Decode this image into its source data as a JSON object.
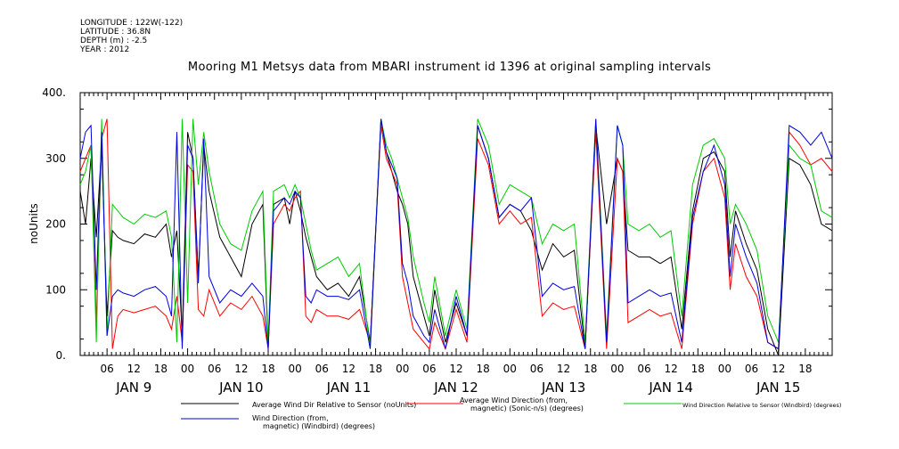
{
  "header": {
    "longitude": "LONGITUDE : 122W(-122)",
    "latitude": "LATITUDE : 36.8N",
    "depth": "DEPTH (m) : -2.5",
    "year": "YEAR : 2012"
  },
  "chart_data": {
    "type": "line",
    "title": "Mooring M1 Metsys data from MBARI instrument id 1396 at original sampling intervals",
    "ylabel": "noUnits",
    "ylim": [
      0,
      400
    ],
    "yticks": [
      0,
      100,
      200,
      300,
      400
    ],
    "ytick_labels": [
      "0.",
      "100",
      "200",
      "300",
      "400."
    ],
    "xlim": [
      0,
      7
    ],
    "x_unit": "days since JAN 9 2012 00:00",
    "hour_ticks": [
      "06",
      "12",
      "18",
      "00"
    ],
    "day_labels": [
      "JAN  9",
      "JAN 10",
      "JAN 11",
      "JAN 12",
      "JAN 13",
      "JAN 14",
      "JAN 15"
    ],
    "grid": false,
    "legend_position": "bottom",
    "series": [
      {
        "name": "Average Wind Dir Relative to Sensor (noUnits)",
        "color": "#000000",
        "x": [
          0.0,
          0.05,
          0.1,
          0.15,
          0.2,
          0.25,
          0.3,
          0.35,
          0.4,
          0.5,
          0.6,
          0.7,
          0.8,
          0.85,
          0.9,
          0.95,
          1.0,
          1.05,
          1.1,
          1.15,
          1.2,
          1.3,
          1.4,
          1.5,
          1.6,
          1.7,
          1.75,
          1.8,
          1.9,
          1.95,
          2.0,
          2.05,
          2.1,
          2.15,
          2.2,
          2.3,
          2.4,
          2.5,
          2.6,
          2.7,
          2.8,
          2.85,
          2.9,
          2.95,
          3.0,
          3.05,
          3.1,
          3.2,
          3.25,
          3.3,
          3.4,
          3.5,
          3.6,
          3.7,
          3.8,
          3.9,
          4.0,
          4.1,
          4.2,
          4.3,
          4.4,
          4.5,
          4.6,
          4.7,
          4.8,
          4.9,
          5.0,
          5.05,
          5.1,
          5.2,
          5.3,
          5.4,
          5.5,
          5.6,
          5.7,
          5.8,
          5.9,
          6.0,
          6.05,
          6.1,
          6.2,
          6.3,
          6.4,
          6.5,
          6.6,
          6.7,
          6.8,
          6.9,
          7.0
        ],
        "values": [
          250,
          200,
          300,
          180,
          320,
          60,
          190,
          180,
          175,
          170,
          185,
          180,
          200,
          150,
          190,
          30,
          340,
          300,
          120,
          320,
          250,
          180,
          150,
          120,
          200,
          230,
          10,
          230,
          240,
          200,
          250,
          220,
          180,
          150,
          120,
          100,
          110,
          90,
          120,
          20,
          360,
          310,
          280,
          250,
          230,
          200,
          120,
          60,
          30,
          100,
          20,
          80,
          30,
          350,
          300,
          210,
          230,
          220,
          190,
          130,
          170,
          150,
          160,
          10,
          350,
          200,
          300,
          280,
          160,
          150,
          150,
          140,
          150,
          40,
          220,
          300,
          310,
          280,
          150,
          220,
          170,
          130,
          40,
          0,
          300,
          290,
          260,
          200,
          190
        ]
      },
      {
        "name": "Average Wind Direction (from, magnetic) (Sonic-n/s) (degrees)",
        "color": "#ff0000",
        "x": [
          0.0,
          0.05,
          0.1,
          0.15,
          0.2,
          0.25,
          0.3,
          0.35,
          0.4,
          0.5,
          0.6,
          0.7,
          0.8,
          0.85,
          0.9,
          0.95,
          1.0,
          1.05,
          1.1,
          1.15,
          1.2,
          1.3,
          1.4,
          1.5,
          1.6,
          1.7,
          1.75,
          1.8,
          1.9,
          1.95,
          2.0,
          2.05,
          2.1,
          2.15,
          2.2,
          2.3,
          2.4,
          2.5,
          2.6,
          2.7,
          2.8,
          2.85,
          2.9,
          2.95,
          3.0,
          3.05,
          3.1,
          3.2,
          3.25,
          3.3,
          3.4,
          3.5,
          3.6,
          3.7,
          3.8,
          3.9,
          4.0,
          4.1,
          4.2,
          4.3,
          4.4,
          4.5,
          4.6,
          4.7,
          4.8,
          4.9,
          5.0,
          5.05,
          5.1,
          5.2,
          5.3,
          5.4,
          5.5,
          5.6,
          5.7,
          5.8,
          5.9,
          6.0,
          6.05,
          6.1,
          6.2,
          6.3,
          6.4,
          6.5,
          6.6,
          6.7,
          6.8,
          6.9,
          7.0
        ],
        "values": [
          280,
          300,
          320,
          50,
          330,
          360,
          10,
          60,
          70,
          65,
          70,
          75,
          60,
          40,
          90,
          20,
          290,
          280,
          70,
          60,
          100,
          60,
          80,
          70,
          90,
          60,
          10,
          200,
          230,
          220,
          240,
          250,
          60,
          50,
          70,
          60,
          60,
          55,
          70,
          20,
          350,
          300,
          280,
          260,
          120,
          80,
          40,
          20,
          10,
          50,
          10,
          70,
          20,
          330,
          290,
          200,
          220,
          200,
          210,
          60,
          80,
          70,
          75,
          10,
          340,
          10,
          300,
          280,
          50,
          60,
          70,
          60,
          65,
          10,
          200,
          280,
          300,
          240,
          100,
          170,
          120,
          90,
          20,
          10,
          340,
          320,
          290,
          300,
          280
        ]
      },
      {
        "name": "Wind Direction Relative to Sensor (Windbird) (degrees)",
        "color": "#00cc00",
        "x": [
          0.0,
          0.05,
          0.1,
          0.15,
          0.2,
          0.25,
          0.3,
          0.35,
          0.4,
          0.5,
          0.6,
          0.7,
          0.8,
          0.85,
          0.9,
          0.95,
          1.0,
          1.05,
          1.1,
          1.15,
          1.2,
          1.3,
          1.4,
          1.5,
          1.6,
          1.7,
          1.75,
          1.8,
          1.9,
          1.95,
          2.0,
          2.05,
          2.1,
          2.15,
          2.2,
          2.3,
          2.4,
          2.5,
          2.6,
          2.7,
          2.8,
          2.85,
          2.9,
          2.95,
          3.0,
          3.05,
          3.1,
          3.2,
          3.25,
          3.3,
          3.4,
          3.5,
          3.6,
          3.7,
          3.8,
          3.9,
          4.0,
          4.1,
          4.2,
          4.3,
          4.4,
          4.5,
          4.6,
          4.7,
          4.8,
          4.9,
          5.0,
          5.05,
          5.1,
          5.2,
          5.3,
          5.4,
          5.5,
          5.6,
          5.7,
          5.8,
          5.9,
          6.0,
          6.05,
          6.1,
          6.2,
          6.3,
          6.4,
          6.5,
          6.6,
          6.7,
          6.8,
          6.9,
          7.0
        ],
        "values": [
          260,
          280,
          320,
          20,
          360,
          30,
          230,
          220,
          210,
          200,
          215,
          210,
          220,
          180,
          20,
          360,
          80,
          360,
          260,
          340,
          280,
          200,
          170,
          160,
          220,
          250,
          20,
          250,
          260,
          240,
          260,
          240,
          200,
          160,
          130,
          140,
          150,
          120,
          140,
          10,
          360,
          320,
          300,
          270,
          240,
          210,
          150,
          80,
          50,
          120,
          30,
          100,
          40,
          360,
          320,
          230,
          260,
          250,
          240,
          170,
          200,
          190,
          200,
          20,
          360,
          30,
          350,
          320,
          200,
          190,
          200,
          180,
          190,
          60,
          260,
          320,
          330,
          300,
          200,
          230,
          200,
          160,
          60,
          20,
          320,
          300,
          290,
          220,
          210
        ]
      },
      {
        "name": "Wind Direction (from, magnetic) (Windbird) (degrees)",
        "color": "#0000dd",
        "x": [
          0.0,
          0.05,
          0.1,
          0.15,
          0.2,
          0.25,
          0.3,
          0.35,
          0.4,
          0.5,
          0.6,
          0.7,
          0.8,
          0.85,
          0.9,
          0.95,
          1.0,
          1.05,
          1.1,
          1.15,
          1.2,
          1.3,
          1.4,
          1.5,
          1.6,
          1.7,
          1.75,
          1.8,
          1.9,
          1.95,
          2.0,
          2.05,
          2.1,
          2.15,
          2.2,
          2.3,
          2.4,
          2.5,
          2.6,
          2.7,
          2.8,
          2.85,
          2.9,
          2.95,
          3.0,
          3.05,
          3.1,
          3.2,
          3.25,
          3.3,
          3.4,
          3.5,
          3.6,
          3.7,
          3.8,
          3.9,
          4.0,
          4.1,
          4.2,
          4.3,
          4.4,
          4.5,
          4.6,
          4.7,
          4.8,
          4.9,
          5.0,
          5.05,
          5.1,
          5.2,
          5.3,
          5.4,
          5.5,
          5.6,
          5.7,
          5.8,
          5.9,
          6.0,
          6.05,
          6.1,
          6.2,
          6.3,
          6.4,
          6.5,
          6.6,
          6.7,
          6.8,
          6.9,
          7.0
        ],
        "values": [
          300,
          340,
          350,
          100,
          340,
          30,
          90,
          100,
          95,
          90,
          100,
          105,
          90,
          60,
          340,
          10,
          320,
          300,
          110,
          330,
          120,
          80,
          100,
          90,
          110,
          90,
          10,
          220,
          240,
          230,
          250,
          240,
          90,
          80,
          100,
          90,
          90,
          85,
          100,
          10,
          360,
          310,
          290,
          270,
          140,
          110,
          60,
          30,
          20,
          70,
          10,
          90,
          30,
          350,
          300,
          210,
          230,
          220,
          240,
          90,
          110,
          100,
          105,
          10,
          360,
          20,
          350,
          320,
          80,
          90,
          100,
          90,
          95,
          20,
          210,
          280,
          320,
          260,
          120,
          200,
          150,
          110,
          20,
          10,
          350,
          340,
          320,
          340,
          300
        ]
      }
    ]
  }
}
